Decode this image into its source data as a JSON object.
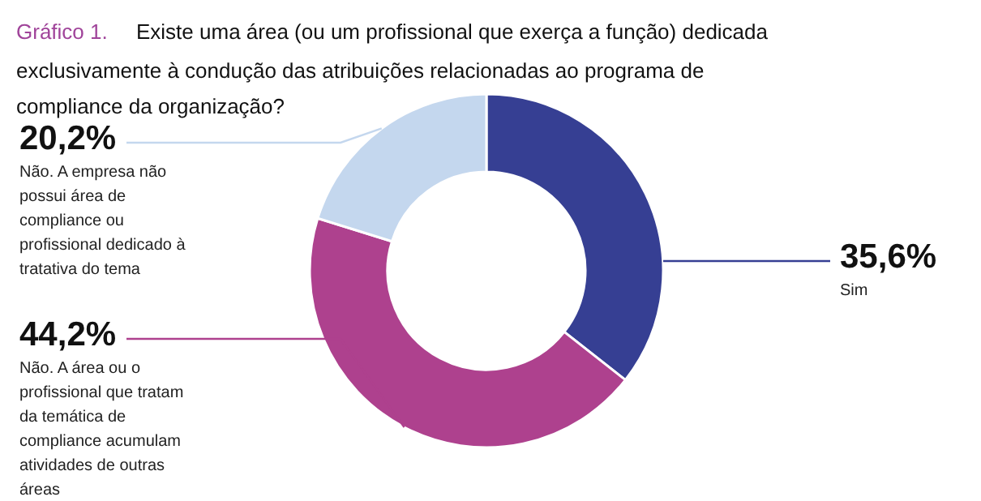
{
  "chart_data": {
    "type": "donut",
    "title": "Gráfico 1.",
    "subtitle": "Existe uma área (ou um profissional que exerça a função) dedicada exclusivamente à condução das atribuições relacionadas ao programa de compliance da organização?",
    "categories": [
      "Sim",
      "Não. A área ou o profissional que tratam da temática de compliance acumulam atividades de outras áreas",
      "Não. A empresa não possui área de compliance ou profissional dedicado à tratativa do tema"
    ],
    "values": [
      35.6,
      44.2,
      20.2
    ],
    "colors": [
      "#363f93",
      "#ae418e",
      "#c4d7ee"
    ],
    "value_labels": [
      "35,6%",
      "44,2%",
      "20,2%"
    ]
  }
}
